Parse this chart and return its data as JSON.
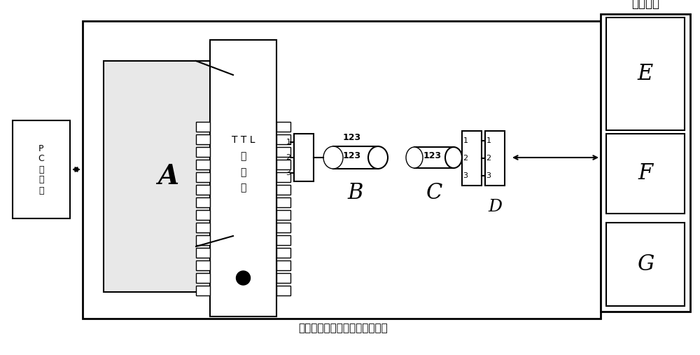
{
  "bg_color": "#ffffff",
  "line_color": "#000000",
  "title_bottom": "深度维修西数硬盘底层接口设备",
  "title_right": "西数硬盘",
  "pc_label": "P\nC\n控\n制\n器",
  "chip_label": "T T L\n主\n芯\n片",
  "label_A": "A",
  "label_B": "B",
  "label_C": "C",
  "label_D": "D",
  "label_E": "E",
  "label_F": "F",
  "label_G": "G"
}
